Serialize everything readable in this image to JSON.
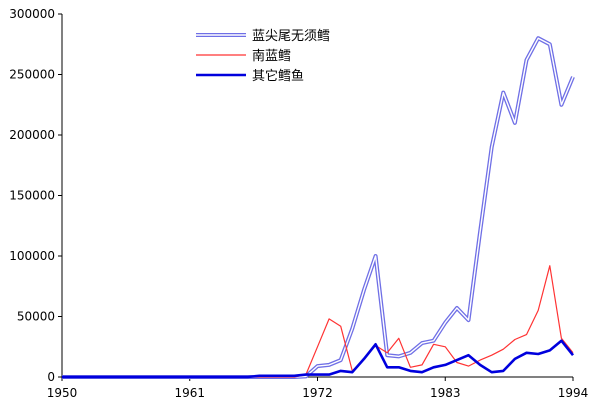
{
  "chart_data": {
    "type": "line",
    "title": "",
    "xlabel": "",
    "ylabel": "",
    "xlim": [
      1950,
      1994
    ],
    "ylim": [
      0,
      300000
    ],
    "x_ticks": [
      1950,
      1961,
      1972,
      1983,
      1994
    ],
    "y_ticks": [
      0,
      50000,
      100000,
      150000,
      200000,
      250000,
      300000
    ],
    "grid": false,
    "legend_position": "top-center",
    "series": [
      {
        "name": "蓝尖尾无须鳕",
        "color": "#6f6fe6",
        "style": "double-line",
        "points": [
          [
            1950,
            0
          ],
          [
            1960,
            0
          ],
          [
            1966,
            0
          ],
          [
            1970,
            0
          ],
          [
            1971,
            500
          ],
          [
            1972,
            9000
          ],
          [
            1973,
            10000
          ],
          [
            1974,
            14000
          ],
          [
            1975,
            40000
          ],
          [
            1976,
            72000
          ],
          [
            1977,
            100000
          ],
          [
            1978,
            18000
          ],
          [
            1979,
            17000
          ],
          [
            1980,
            20000
          ],
          [
            1981,
            28000
          ],
          [
            1982,
            30000
          ],
          [
            1983,
            45000
          ],
          [
            1984,
            57000
          ],
          [
            1985,
            47000
          ],
          [
            1986,
            120000
          ],
          [
            1987,
            190000
          ],
          [
            1988,
            235000
          ],
          [
            1989,
            210000
          ],
          [
            1990,
            262000
          ],
          [
            1991,
            280000
          ],
          [
            1992,
            275000
          ],
          [
            1993,
            225000
          ],
          [
            1994,
            248000
          ]
        ]
      },
      {
        "name": "南蓝鳕",
        "color": "#ff3333",
        "style": "thin",
        "points": [
          [
            1950,
            0
          ],
          [
            1960,
            0
          ],
          [
            1966,
            0
          ],
          [
            1970,
            0
          ],
          [
            1971,
            2000
          ],
          [
            1972,
            25000
          ],
          [
            1973,
            48000
          ],
          [
            1974,
            42000
          ],
          [
            1975,
            5000
          ],
          [
            1976,
            15000
          ],
          [
            1977,
            26000
          ],
          [
            1978,
            20000
          ],
          [
            1979,
            32000
          ],
          [
            1980,
            8000
          ],
          [
            1981,
            10000
          ],
          [
            1982,
            27000
          ],
          [
            1983,
            25000
          ],
          [
            1984,
            12000
          ],
          [
            1985,
            9000
          ],
          [
            1986,
            14000
          ],
          [
            1987,
            18000
          ],
          [
            1988,
            23000
          ],
          [
            1989,
            31000
          ],
          [
            1990,
            35000
          ],
          [
            1991,
            55000
          ],
          [
            1992,
            92000
          ],
          [
            1993,
            32000
          ],
          [
            1994,
            20000
          ]
        ]
      },
      {
        "name": "其它鳕鱼",
        "color": "#0000dd",
        "style": "thick",
        "points": [
          [
            1950,
            0
          ],
          [
            1960,
            0
          ],
          [
            1966,
            0
          ],
          [
            1967,
            1000
          ],
          [
            1970,
            1000
          ],
          [
            1971,
            2000
          ],
          [
            1972,
            2000
          ],
          [
            1973,
            2000
          ],
          [
            1974,
            5000
          ],
          [
            1975,
            4000
          ],
          [
            1976,
            15000
          ],
          [
            1977,
            27000
          ],
          [
            1978,
            8000
          ],
          [
            1979,
            8000
          ],
          [
            1980,
            5000
          ],
          [
            1981,
            4000
          ],
          [
            1982,
            8000
          ],
          [
            1983,
            10000
          ],
          [
            1984,
            14000
          ],
          [
            1985,
            18000
          ],
          [
            1986,
            10000
          ],
          [
            1987,
            4000
          ],
          [
            1988,
            5000
          ],
          [
            1989,
            15000
          ],
          [
            1990,
            20000
          ],
          [
            1991,
            19000
          ],
          [
            1992,
            22000
          ],
          [
            1993,
            30000
          ],
          [
            1994,
            18000
          ]
        ]
      }
    ]
  }
}
